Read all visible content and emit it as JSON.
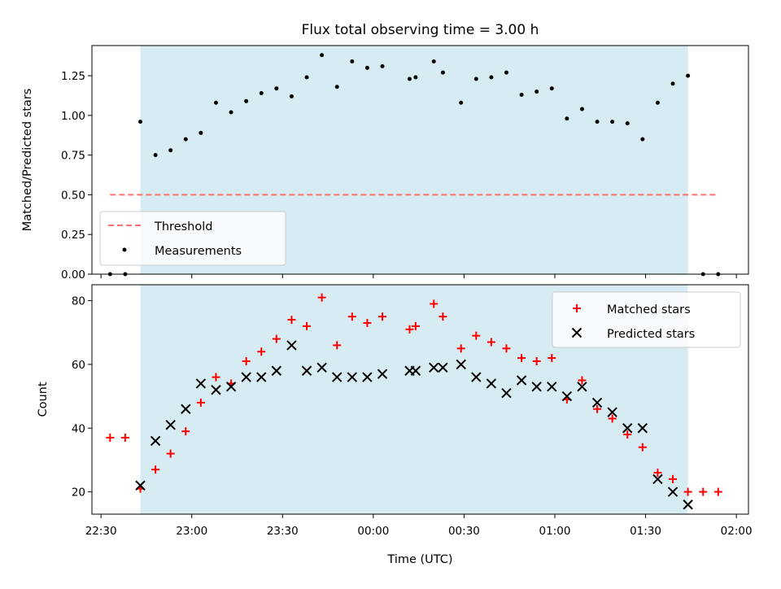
{
  "chart_data": [
    {
      "type": "scatter",
      "title": "Flux total observing time = 3.00 h",
      "xlabel": "",
      "ylabel": "Matched/Predicted stars",
      "ylim": [
        0,
        1.44
      ],
      "xlim": [
        "22:27",
        "02:04"
      ],
      "yticks": [
        0.0,
        0.25,
        0.5,
        0.75,
        1.0,
        1.25
      ],
      "ytick_labels": [
        "0.00",
        "0.25",
        "0.50",
        "0.75",
        "1.00",
        "1.25"
      ],
      "shaded_interval": {
        "start": "22:43",
        "end": "01:44",
        "color": "#add8e6"
      },
      "grid": false,
      "legend_position": "lower-left",
      "threshold": {
        "name": "Threshold",
        "value": 0.5,
        "x_start": "22:33",
        "x_end": "01:54",
        "color": "#ff7070",
        "style": "dashed"
      },
      "series": [
        {
          "name": "Measurements",
          "marker": "dot",
          "color": "#000000",
          "x": [
            "22:33",
            "22:38",
            "22:43",
            "22:48",
            "22:53",
            "22:58",
            "23:03",
            "23:08",
            "23:13",
            "23:18",
            "23:23",
            "23:28",
            "23:33",
            "23:38",
            "23:43",
            "23:48",
            "23:53",
            "23:58",
            "00:03",
            "00:12",
            "00:14",
            "00:20",
            "00:23",
            "00:29",
            "00:34",
            "00:39",
            "00:44",
            "00:49",
            "00:54",
            "00:59",
            "01:04",
            "01:09",
            "01:14",
            "01:19",
            "01:24",
            "01:29",
            "01:34",
            "01:39",
            "01:44",
            "01:49",
            "01:54"
          ],
          "y": [
            0.0,
            0.0,
            0.96,
            0.75,
            0.78,
            0.85,
            0.89,
            1.08,
            1.02,
            1.09,
            1.14,
            1.17,
            1.12,
            1.24,
            1.38,
            1.18,
            1.34,
            1.3,
            1.31,
            1.23,
            1.24,
            1.34,
            1.27,
            1.08,
            1.23,
            1.24,
            1.27,
            1.13,
            1.15,
            1.17,
            0.98,
            1.04,
            0.96,
            0.96,
            0.95,
            0.85,
            1.08,
            1.2,
            1.25,
            0.0,
            0.0
          ]
        }
      ]
    },
    {
      "type": "scatter",
      "title": "",
      "xlabel": "Time (UTC)",
      "ylabel": "Count",
      "ylim": [
        13,
        85
      ],
      "xlim": [
        "22:27",
        "02:04"
      ],
      "yticks": [
        20,
        40,
        60,
        80
      ],
      "ytick_labels": [
        "20",
        "40",
        "60",
        "80"
      ],
      "xticks": [
        "22:30",
        "23:00",
        "23:30",
        "00:00",
        "00:30",
        "01:00",
        "01:30",
        "02:00"
      ],
      "shaded_interval": {
        "start": "22:43",
        "end": "01:44",
        "color": "#add8e6"
      },
      "grid": false,
      "legend_position": "top-right",
      "series": [
        {
          "name": "Matched stars",
          "marker": "plus",
          "color": "#ff0000",
          "x": [
            "22:33",
            "22:38",
            "22:43",
            "22:48",
            "22:53",
            "22:58",
            "23:03",
            "23:08",
            "23:13",
            "23:18",
            "23:23",
            "23:28",
            "23:33",
            "23:38",
            "23:43",
            "23:48",
            "23:53",
            "23:58",
            "00:03",
            "00:12",
            "00:14",
            "00:20",
            "00:23",
            "00:29",
            "00:34",
            "00:39",
            "00:44",
            "00:49",
            "00:54",
            "00:59",
            "01:04",
            "01:09",
            "01:14",
            "01:19",
            "01:24",
            "01:29",
            "01:34",
            "01:39",
            "01:44",
            "01:49",
            "01:54"
          ],
          "y": [
            37,
            37,
            21,
            27,
            32,
            39,
            48,
            56,
            54,
            61,
            64,
            68,
            74,
            72,
            81,
            66,
            75,
            73,
            75,
            71,
            72,
            79,
            75,
            65,
            69,
            67,
            65,
            62,
            61,
            62,
            49,
            55,
            46,
            43,
            38,
            34,
            26,
            24,
            20,
            20,
            20
          ]
        },
        {
          "name": "Predicted stars",
          "marker": "x",
          "color": "#000000",
          "x": [
            "22:43",
            "22:48",
            "22:53",
            "22:58",
            "23:03",
            "23:08",
            "23:13",
            "23:18",
            "23:23",
            "23:28",
            "23:33",
            "23:38",
            "23:43",
            "23:48",
            "23:53",
            "23:58",
            "00:03",
            "00:12",
            "00:14",
            "00:20",
            "00:23",
            "00:29",
            "00:34",
            "00:39",
            "00:44",
            "00:49",
            "00:54",
            "00:59",
            "01:04",
            "01:09",
            "01:14",
            "01:19",
            "01:24",
            "01:29",
            "01:34",
            "01:39",
            "01:44"
          ],
          "y": [
            22,
            36,
            41,
            46,
            54,
            52,
            53,
            56,
            56,
            58,
            66,
            58,
            59,
            56,
            56,
            56,
            57,
            58,
            58,
            59,
            59,
            60,
            56,
            54,
            51,
            55,
            53,
            53,
            50,
            53,
            48,
            45,
            40,
            40,
            24,
            20,
            16
          ]
        }
      ]
    }
  ]
}
